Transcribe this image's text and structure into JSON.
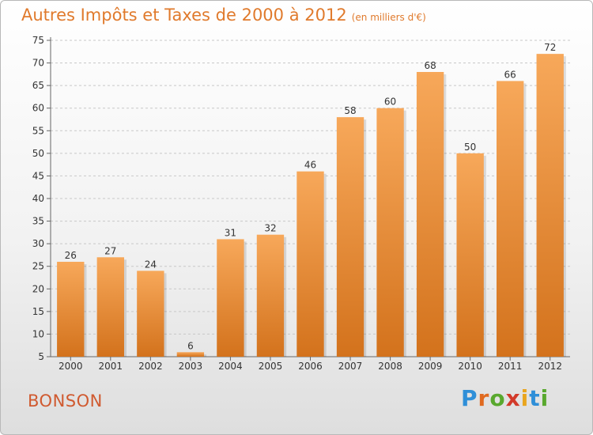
{
  "page": {
    "title": "Autres Impôts et Taxes de 2000 à 2012",
    "subtitle": "(en milliers d'€)",
    "commune": "BONSON",
    "logo": [
      "P",
      "r",
      "o",
      "x",
      "i",
      "t",
      "i"
    ],
    "logo_colors": [
      "#2f8fd8",
      "#e06a20",
      "#59a82e",
      "#d23a2a",
      "#e9a51e",
      "#2f8fd8",
      "#59a82e"
    ]
  },
  "chart_data": {
    "type": "bar",
    "title": "Autres Impôts et Taxes de 2000 à 2012",
    "subtitle": "(en milliers d'€)",
    "categories": [
      "2000",
      "2001",
      "2002",
      "2003",
      "2004",
      "2005",
      "2006",
      "2007",
      "2008",
      "2009",
      "2010",
      "2011",
      "2012"
    ],
    "values": [
      26,
      27,
      24,
      6,
      31,
      32,
      46,
      58,
      60,
      68,
      50,
      66,
      72
    ],
    "ylim": [
      5,
      75
    ],
    "yticks": [
      5,
      10,
      15,
      20,
      25,
      30,
      35,
      40,
      45,
      50,
      55,
      60,
      65,
      70,
      75
    ],
    "grid": "horizontal-dashed",
    "bar_color_top": "#f7a85a",
    "bar_color_bottom": "#d3721c"
  }
}
